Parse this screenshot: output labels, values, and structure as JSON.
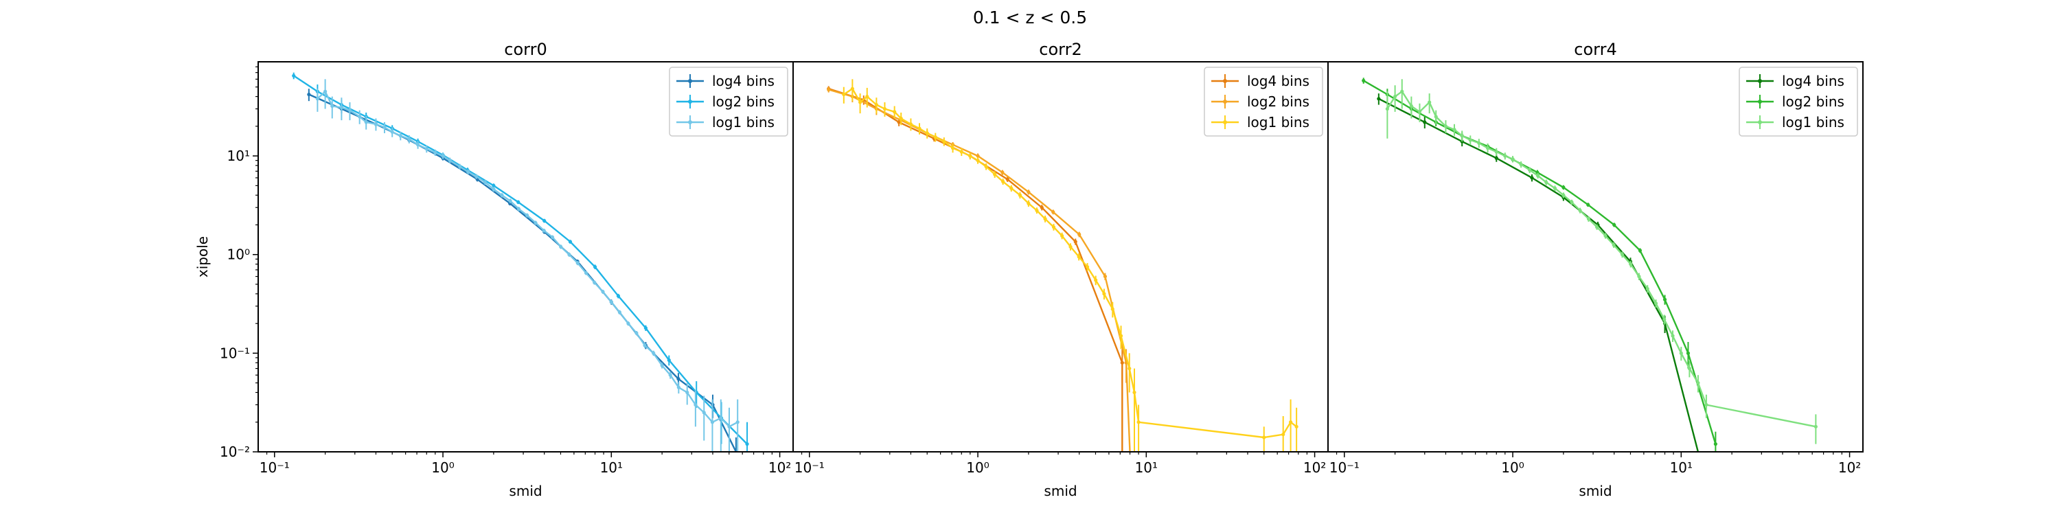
{
  "figure": {
    "suptitle": "0.1 < z < 0.5"
  },
  "chart_data": [
    {
      "type": "line",
      "title": "corr0",
      "xlabel": "smid",
      "ylabel": "xipole",
      "xscale": "log",
      "yscale": "log",
      "xlim": [
        0.08,
        120
      ],
      "ylim": [
        0.01,
        90
      ],
      "xticks": [
        {
          "value": 0.1,
          "label": "10⁻¹"
        },
        {
          "value": 1,
          "label": "10⁰"
        },
        {
          "value": 10,
          "label": "10¹"
        },
        {
          "value": 100,
          "label": "10²"
        }
      ],
      "yticks": [
        {
          "value": 0.01,
          "label": "10⁻²"
        },
        {
          "value": 0.1,
          "label": "10⁻¹"
        },
        {
          "value": 1,
          "label": "10⁰"
        },
        {
          "value": 10,
          "label": "10¹"
        }
      ],
      "grid": false,
      "legend": "top-right",
      "series": [
        {
          "name": "log4 bins",
          "color": "#1f78b4",
          "x": [
            0.16,
            0.25,
            0.4,
            0.63,
            1.0,
            1.6,
            2.5,
            4.0,
            6.3,
            10,
            16,
            25,
            40,
            55
          ],
          "y": [
            42,
            30,
            21,
            14.5,
            9.5,
            5.8,
            3.3,
            1.7,
            0.85,
            0.33,
            0.12,
            0.055,
            0.03,
            0.01
          ],
          "yerr": [
            6,
            3,
            1.5,
            0.8,
            0.5,
            0.3,
            0.15,
            0.08,
            0.04,
            0.02,
            0.01,
            0.008,
            0.008,
            0.004
          ]
        },
        {
          "name": "log2 bins",
          "color": "#1fb4e6",
          "x": [
            0.13,
            0.18,
            0.25,
            0.35,
            0.5,
            0.71,
            1.0,
            1.4,
            2.0,
            2.8,
            4.0,
            5.7,
            8.0,
            11,
            16,
            22,
            32,
            45,
            64
          ],
          "y": [
            65,
            45,
            33,
            25,
            19,
            14,
            10.2,
            7.2,
            5.0,
            3.4,
            2.2,
            1.35,
            0.75,
            0.38,
            0.18,
            0.085,
            0.04,
            0.022,
            0.012
          ],
          "yerr": [
            5,
            8,
            4,
            2.5,
            1.5,
            1,
            0.6,
            0.4,
            0.25,
            0.15,
            0.1,
            0.06,
            0.04,
            0.02,
            0.012,
            0.01,
            0.012,
            0.01,
            0.008
          ]
        },
        {
          "name": "log1 bins",
          "color": "#74c7e8",
          "x": [
            0.18,
            0.2,
            0.22,
            0.25,
            0.28,
            0.32,
            0.35,
            0.4,
            0.45,
            0.5,
            0.56,
            0.63,
            0.71,
            0.8,
            0.9,
            1.0,
            1.1,
            1.26,
            1.41,
            1.58,
            1.78,
            2.0,
            2.24,
            2.51,
            2.82,
            3.16,
            3.55,
            3.98,
            4.47,
            5.01,
            5.62,
            6.31,
            7.08,
            7.94,
            8.91,
            10,
            11.2,
            12.6,
            14.1,
            15.8,
            17.8,
            20,
            22.4,
            25.1,
            28.2,
            31.6,
            35.5,
            39.8,
            44.7,
            50.1,
            56.2
          ],
          "y": [
            38,
            45,
            32,
            31,
            29,
            25,
            22,
            21,
            19.5,
            17.5,
            16,
            14.8,
            13,
            11.8,
            10.8,
            10,
            9.0,
            7.8,
            6.9,
            6.2,
            5.4,
            4.6,
            4.0,
            3.5,
            2.9,
            2.5,
            2.1,
            1.75,
            1.5,
            1.2,
            1.0,
            0.82,
            0.65,
            0.52,
            0.42,
            0.33,
            0.26,
            0.2,
            0.16,
            0.12,
            0.1,
            0.075,
            0.06,
            0.045,
            0.04,
            0.03,
            0.025,
            0.02,
            0.022,
            0.018,
            0.02
          ],
          "yerr": [
            10,
            15,
            8,
            8,
            6,
            4,
            3.5,
            3,
            2.5,
            2,
            1.6,
            1.4,
            1.2,
            1,
            0.8,
            0.7,
            0.6,
            0.5,
            0.4,
            0.35,
            0.3,
            0.25,
            0.2,
            0.18,
            0.15,
            0.12,
            0.1,
            0.08,
            0.07,
            0.06,
            0.05,
            0.04,
            0.03,
            0.025,
            0.02,
            0.016,
            0.013,
            0.01,
            0.008,
            0.007,
            0.006,
            0.005,
            0.005,
            0.006,
            0.01,
            0.012,
            0.012,
            0.014,
            0.012,
            0.01,
            0.014
          ]
        }
      ]
    },
    {
      "type": "line",
      "title": "corr2",
      "xlabel": "smid",
      "ylabel": "",
      "xscale": "log",
      "yscale": "log",
      "xlim": [
        0.08,
        120
      ],
      "ylim": [
        0.01,
        90
      ],
      "xticks": [
        {
          "value": 0.1,
          "label": "10⁻¹"
        },
        {
          "value": 1,
          "label": "10⁰"
        },
        {
          "value": 10,
          "label": "10¹"
        },
        {
          "value": 100,
          "label": "10²"
        }
      ],
      "yticks": [],
      "grid": false,
      "legend": "top-right",
      "series": [
        {
          "name": "log4 bins",
          "color": "#e67e0f",
          "x": [
            0.13,
            0.21,
            0.34,
            0.55,
            0.9,
            1.5,
            2.4,
            3.8,
            7.2,
            7.2
          ],
          "y": [
            48,
            37,
            22,
            15,
            10,
            5.8,
            3.0,
            1.35,
            0.08,
            0.01
          ],
          "yerr": [
            3,
            4,
            2,
            1,
            0.6,
            0.35,
            0.2,
            0.1,
            0.03,
            0
          ]
        },
        {
          "name": "log2 bins",
          "color": "#f5a623",
          "x": [
            0.13,
            0.18,
            0.25,
            0.35,
            0.5,
            0.71,
            1.0,
            1.4,
            2.0,
            2.8,
            4.0,
            5.7,
            7.6,
            8.0
          ],
          "y": [
            47,
            40,
            30,
            23,
            17,
            13,
            10,
            6.8,
            4.3,
            2.7,
            1.6,
            0.6,
            0.08,
            0.01
          ],
          "yerr": [
            3,
            5,
            4,
            2,
            1.3,
            0.8,
            0.6,
            0.4,
            0.25,
            0.15,
            0.1,
            0.05,
            0.03,
            0
          ]
        },
        {
          "name": "log1 bins",
          "color": "#ffd11a",
          "x": [
            0.16,
            0.18,
            0.2,
            0.22,
            0.25,
            0.28,
            0.32,
            0.35,
            0.4,
            0.45,
            0.5,
            0.56,
            0.63,
            0.71,
            0.8,
            0.9,
            1.0,
            1.12,
            1.26,
            1.41,
            1.58,
            1.78,
            2.0,
            2.24,
            2.51,
            2.82,
            3.16,
            3.55,
            3.98,
            4.47,
            5.01,
            5.62,
            6.31,
            7.08,
            7.94,
            8.5,
            9.0,
            50,
            65,
            72,
            78
          ],
          "y": [
            42,
            48,
            35,
            40,
            33,
            30,
            28,
            24,
            21,
            19,
            17,
            15.5,
            14,
            12,
            11,
            10,
            9.0,
            7.8,
            6.5,
            5.5,
            4.7,
            4.0,
            3.3,
            2.8,
            2.3,
            1.9,
            1.55,
            1.2,
            0.95,
            0.75,
            0.55,
            0.4,
            0.28,
            0.15,
            0.07,
            0.04,
            0.02,
            0.014,
            0.015,
            0.02,
            0.018
          ],
          "yerr": [
            8,
            12,
            8,
            9,
            6,
            5,
            4,
            3.5,
            3,
            2.5,
            2,
            1.6,
            1.4,
            1.2,
            1,
            0.8,
            0.7,
            0.6,
            0.5,
            0.4,
            0.35,
            0.3,
            0.25,
            0.2,
            0.18,
            0.15,
            0.12,
            0.1,
            0.08,
            0.07,
            0.06,
            0.05,
            0.05,
            0.04,
            0.03,
            0.03,
            0.01,
            0.004,
            0.008,
            0.014,
            0.01
          ]
        }
      ]
    },
    {
      "type": "line",
      "title": "corr4",
      "xlabel": "smid",
      "ylabel": "",
      "xscale": "log",
      "yscale": "log",
      "xlim": [
        0.08,
        120
      ],
      "ylim": [
        0.01,
        90
      ],
      "xticks": [
        {
          "value": 0.1,
          "label": "10⁻¹"
        },
        {
          "value": 1,
          "label": "10⁰"
        },
        {
          "value": 10,
          "label": "10¹"
        },
        {
          "value": 100,
          "label": "10²"
        }
      ],
      "yticks": [],
      "grid": false,
      "legend": "top-right",
      "series": [
        {
          "name": "log4 bins",
          "color": "#0a7d0a",
          "x": [
            0.16,
            0.3,
            0.5,
            0.8,
            1.3,
            2.0,
            3.2,
            5.0,
            8.0,
            12.6
          ],
          "y": [
            38,
            22,
            14,
            9.5,
            6.0,
            3.8,
            2.0,
            0.85,
            0.2,
            0.01
          ],
          "yerr": [
            5,
            3,
            1.5,
            0.8,
            0.5,
            0.3,
            0.15,
            0.08,
            0.04,
            0
          ]
        },
        {
          "name": "log2 bins",
          "color": "#2db82d",
          "x": [
            0.13,
            0.18,
            0.25,
            0.35,
            0.5,
            0.71,
            1.0,
            1.4,
            2.0,
            2.8,
            4.0,
            5.7,
            8.0,
            11,
            16
          ],
          "y": [
            58,
            42,
            30,
            22,
            16,
            12.5,
            9.2,
            6.8,
            4.8,
            3.2,
            2.0,
            1.1,
            0.35,
            0.1,
            0.012
          ],
          "yerr": [
            4,
            6,
            4,
            2,
            1.3,
            0.8,
            0.6,
            0.4,
            0.25,
            0.15,
            0.1,
            0.06,
            0.04,
            0.03,
            0.004
          ]
        },
        {
          "name": "log1 bins",
          "color": "#7ee07e",
          "x": [
            0.18,
            0.2,
            0.22,
            0.25,
            0.28,
            0.32,
            0.35,
            0.4,
            0.45,
            0.5,
            0.56,
            0.63,
            0.71,
            0.8,
            0.9,
            1.0,
            1.12,
            1.26,
            1.41,
            1.58,
            1.78,
            2.0,
            2.24,
            2.51,
            2.82,
            3.16,
            3.55,
            3.98,
            4.47,
            5.01,
            5.62,
            6.31,
            7.08,
            7.94,
            8.91,
            10,
            11.2,
            12.6,
            14.1,
            63
          ],
          "y": [
            30,
            40,
            45,
            32,
            28,
            35,
            25,
            20,
            18.5,
            16,
            14.5,
            13.5,
            12,
            11,
            10,
            9.3,
            8.2,
            7.2,
            6.3,
            5.4,
            4.7,
            4.0,
            3.4,
            2.8,
            2.3,
            1.9,
            1.55,
            1.25,
            1.0,
            0.8,
            0.6,
            0.45,
            0.32,
            0.22,
            0.15,
            0.1,
            0.07,
            0.05,
            0.03,
            0.018
          ],
          "yerr": [
            15,
            12,
            15,
            8,
            6,
            8,
            4,
            3,
            2.5,
            2,
            1.6,
            1.4,
            1.2,
            1,
            0.8,
            0.7,
            0.6,
            0.5,
            0.4,
            0.35,
            0.3,
            0.25,
            0.2,
            0.18,
            0.15,
            0.12,
            0.1,
            0.08,
            0.07,
            0.06,
            0.05,
            0.04,
            0.03,
            0.025,
            0.02,
            0.016,
            0.013,
            0.01,
            0.008,
            0.006
          ]
        }
      ]
    }
  ]
}
